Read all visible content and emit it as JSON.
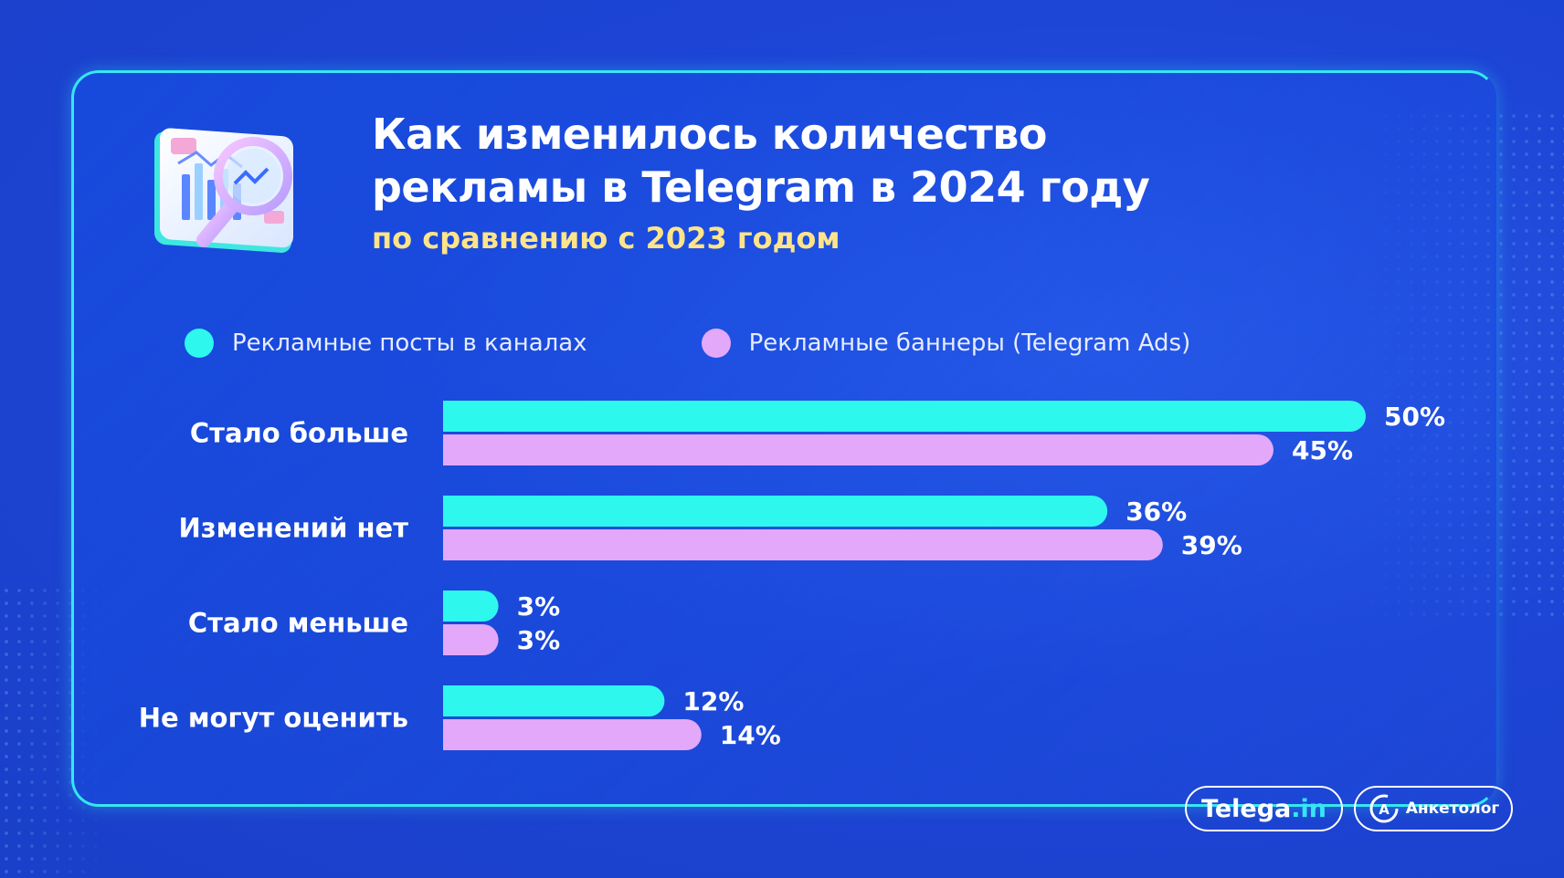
{
  "title": "Как изменилось количество\nрекламы в Telegram в 2024 году",
  "subtitle": "по сравнению с 2023 годом",
  "colors": {
    "series_posts": "#2ef7ee",
    "series_banners": "#e4a8fb",
    "subtitle": "#ffe48a",
    "background": "#1d45d6",
    "panel_border": "#36e6f2"
  },
  "chart_data": {
    "type": "bar",
    "orientation": "horizontal",
    "categories": [
      "Стало больше",
      "Изменений нет",
      "Стало меньше",
      "Не могут оценить"
    ],
    "series": [
      {
        "name": "Рекламные посты в каналах",
        "values": [
          50,
          36,
          3,
          12
        ],
        "labels": [
          "50%",
          "36%",
          "3%",
          "12%"
        ]
      },
      {
        "name": "Рекламные баннеры (Telegram Ads)",
        "values": [
          45,
          39,
          3,
          14
        ],
        "labels": [
          "45%",
          "39%",
          "3%",
          "14%"
        ]
      }
    ],
    "unit": "%",
    "xlim": [
      0,
      50
    ],
    "legend_position": "top",
    "grid": false
  },
  "branding": {
    "telega_main": "Telega",
    "telega_suffix": ".in",
    "anketolog": "Анкетолог",
    "anketolog_icon": "anketolog-logo-icon"
  },
  "illustration_icon": "chart-magnifier-icon"
}
